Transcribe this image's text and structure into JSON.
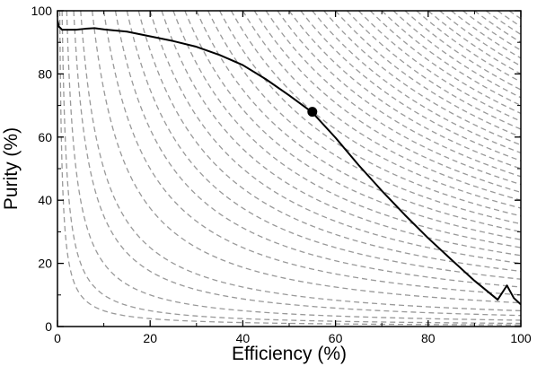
{
  "chart_data": {
    "type": "line",
    "title": "",
    "xlabel": "Efficiency (%)",
    "ylabel": "Purity (%)",
    "xlim": [
      0,
      100
    ],
    "ylim": [
      0,
      100
    ],
    "x_ticks": [
      0,
      20,
      40,
      60,
      80,
      100
    ],
    "y_ticks": [
      0,
      20,
      40,
      60,
      80,
      100
    ],
    "grid": false,
    "legend": "none",
    "series": [
      {
        "style": "solid",
        "color": "#000000",
        "x": [
          0,
          0.3,
          1,
          2,
          4,
          6,
          8,
          10,
          15,
          20,
          25,
          30,
          35,
          40,
          45,
          50,
          55,
          60,
          65,
          70,
          75,
          80,
          85,
          90,
          95,
          97,
          98.5,
          100
        ],
        "y": [
          97,
          95,
          94,
          94,
          94,
          94.3,
          94.5,
          94.1,
          93.4,
          91.9,
          90.4,
          88.6,
          86.0,
          82.8,
          78.3,
          73.2,
          67.8,
          59.8,
          51.1,
          43.0,
          35.3,
          28.0,
          21.2,
          14.5,
          8.5,
          13,
          9,
          7
        ]
      }
    ],
    "reference_curves": {
      "style": "dashed",
      "color": "#999999",
      "equation": "efficiency * purity = constant",
      "constants": [
        50,
        100,
        200,
        350,
        500,
        750,
        1000,
        1250,
        1500,
        1750,
        2000,
        2250,
        2500,
        2750,
        3000,
        3250,
        3500,
        3750,
        4000,
        4250,
        4500,
        4750,
        5000,
        5250,
        5500,
        5750,
        6000,
        6250,
        6500,
        6750,
        7000,
        7250,
        7500,
        7750,
        8000,
        8250,
        8500,
        8750,
        9000,
        9250,
        9500,
        9750
      ]
    },
    "marker": {
      "x": 55,
      "y": 68,
      "color": "#000000"
    }
  }
}
